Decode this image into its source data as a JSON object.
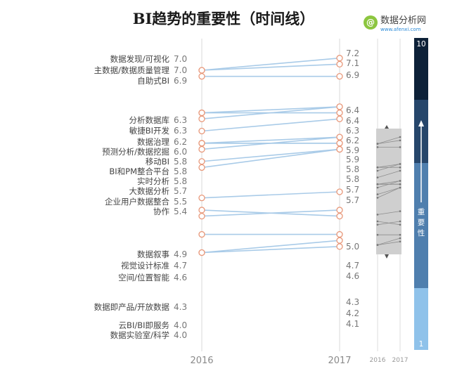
{
  "chart_data": {
    "type": "slope",
    "title": "BI趋势的重要性（时间线）",
    "x": [
      "2016",
      "2017"
    ],
    "series": [
      {
        "name": "数据发现/可视化",
        "values": [
          7.0,
          7.2
        ]
      },
      {
        "name": "主数据/数据质量管理",
        "values": [
          7.0,
          7.1
        ]
      },
      {
        "name": "自助式BI",
        "values": [
          6.9,
          6.9
        ]
      },
      {
        "name": "分析数据库",
        "values": [
          6.3,
          6.4
        ]
      },
      {
        "name": "敏捷BI开发",
        "values": [
          6.3,
          6.3
        ]
      },
      {
        "name": "数据治理",
        "values": [
          6.2,
          6.4
        ]
      },
      {
        "name": "预测分析/数据挖掘",
        "values": [
          6.0,
          6.2
        ]
      },
      {
        "name": "移动BI",
        "values": [
          5.8,
          5.9
        ]
      },
      {
        "name": "BI和PM整合平台",
        "values": [
          5.8,
          5.8
        ]
      },
      {
        "name": "实时分析",
        "values": [
          5.8,
          5.8
        ]
      },
      {
        "name": "大数据分析",
        "values": [
          5.7,
          5.9
        ]
      },
      {
        "name": "企业用户数据整合",
        "values": [
          5.5,
          5.7
        ]
      },
      {
        "name": "协作",
        "values": [
          5.4,
          5.7
        ]
      },
      {
        "name": "数据叙事",
        "values": [
          4.9,
          5.0
        ]
      },
      {
        "name": "视觉设计标准",
        "values": [
          4.7,
          4.6
        ]
      },
      {
        "name": "空间/位置智能",
        "values": [
          4.6,
          4.7
        ]
      },
      {
        "name": "数据即产品/开放数据",
        "values": [
          4.3,
          4.3
        ]
      },
      {
        "name": "云BI/BI即服务",
        "values": [
          4.0,
          4.2
        ]
      },
      {
        "name": "数据实验室/科学",
        "values": [
          4.0,
          4.1
        ]
      }
    ],
    "left_value_labels": [
      "7.0",
      "7.0",
      "6.9",
      "6.3",
      "6.3",
      "6.2",
      "6.0",
      "5.8",
      "5.8",
      "5.8",
      "5.7",
      "5.5",
      "5.4",
      "4.9",
      "4.7",
      "4.6",
      "4.3",
      "4.0",
      "4.0"
    ],
    "right_value_labels": [
      "7.2",
      "7.1",
      "6.9",
      "6.4",
      "6.4",
      "6.3",
      "6.2",
      "5.9",
      "5.9",
      "5.8",
      "5.8",
      "5.7",
      "5.7",
      "5.0",
      "4.7",
      "4.6",
      "4.3",
      "4.2",
      "4.1"
    ],
    "mini_chart": {
      "x": [
        "2016",
        "2017"
      ]
    },
    "importance_scale": {
      "top": "10",
      "bottom": "1",
      "label": "重要性"
    },
    "colors": {
      "line": "#a9cbe8",
      "marker": "#e8987a",
      "axis": "#d8d8d8"
    }
  },
  "brand": {
    "name": "数据分析网",
    "url": "www.afenxi.com",
    "logo_color": "#8cc63f"
  }
}
